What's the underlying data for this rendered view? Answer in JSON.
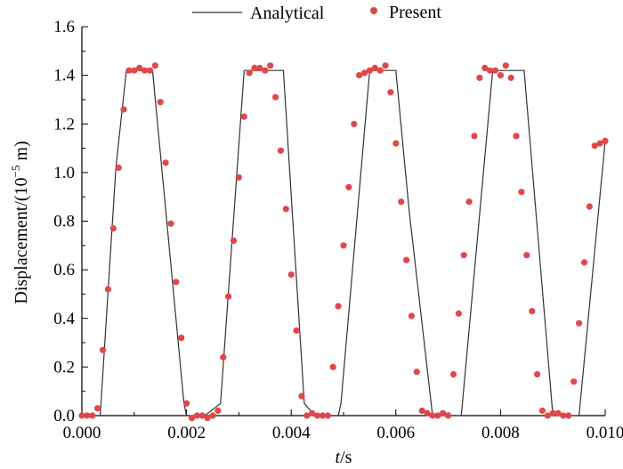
{
  "chart_data": {
    "type": "line",
    "title": "",
    "xlabel": {
      "italic": "t",
      "rest": "/s"
    },
    "ylabel": {
      "prefix": "Displacement/(10",
      "exp": "−5",
      "suffix": " m)"
    },
    "xlim": [
      0,
      0.01
    ],
    "ylim": [
      0,
      1.6
    ],
    "x_ticks": [
      "0.000",
      "0.002",
      "0.004",
      "0.006",
      "0.008",
      "0.010"
    ],
    "x_tick_values": [
      0,
      0.002,
      0.004,
      0.006,
      0.008,
      0.01
    ],
    "y_ticks": [
      "0.0",
      "0.2",
      "0.4",
      "0.6",
      "0.8",
      "1.0",
      "1.2",
      "1.4",
      "1.6"
    ],
    "y_tick_values": [
      0,
      0.2,
      0.4,
      0.6,
      0.8,
      1.0,
      1.2,
      1.4,
      1.6
    ],
    "legend_position": "top",
    "series": [
      {
        "name": "Analytical",
        "style": "line",
        "color": "#333333",
        "x": [
          0,
          0.00035,
          0.00065,
          0.00085,
          0.0013,
          0.00135,
          0.00195,
          0.002,
          0.00235,
          0.00265,
          0.0031,
          0.00315,
          0.00375,
          0.00385,
          0.00425,
          0.00445,
          0.0049,
          0.00495,
          0.0055,
          0.0056,
          0.006,
          0.00625,
          0.0067,
          0.00725,
          0.00785,
          0.00795,
          0.0084,
          0.00845,
          0.009,
          0.0095,
          0.01
        ],
        "y": [
          0,
          0,
          1.02,
          1.42,
          1.42,
          1.42,
          0.05,
          0,
          0,
          0.05,
          1.42,
          1.42,
          1.42,
          1.42,
          0.05,
          0,
          0,
          0.05,
          1.42,
          1.42,
          1.42,
          0.85,
          0,
          0,
          1.42,
          1.42,
          1.42,
          1.42,
          0,
          0,
          1.13
        ]
      },
      {
        "name": "Present",
        "style": "scatter",
        "color": "#e04848",
        "x": [
          0,
          0.0001,
          0.0002,
          0.0003,
          0.0004,
          0.0005,
          0.0006,
          0.0007,
          0.0008,
          0.0009,
          0.001,
          0.0011,
          0.0012,
          0.0013,
          0.0014,
          0.0015,
          0.0016,
          0.0017,
          0.0018,
          0.0019,
          0.002,
          0.0021,
          0.0022,
          0.0023,
          0.0024,
          0.0025,
          0.0026,
          0.0027,
          0.0028,
          0.0029,
          0.003,
          0.0031,
          0.0032,
          0.0033,
          0.0034,
          0.0035,
          0.0036,
          0.0037,
          0.0038,
          0.0039,
          0.004,
          0.0041,
          0.0042,
          0.0043,
          0.0044,
          0.0045,
          0.0046,
          0.0047,
          0.0048,
          0.0049,
          0.005,
          0.0051,
          0.0052,
          0.0053,
          0.0054,
          0.0055,
          0.0056,
          0.0057,
          0.0058,
          0.0059,
          0.006,
          0.0061,
          0.0062,
          0.0063,
          0.0064,
          0.0065,
          0.0066,
          0.0067,
          0.0068,
          0.0069,
          0.007,
          0.0071,
          0.0072,
          0.0073,
          0.0074,
          0.0075,
          0.0076,
          0.0077,
          0.0078,
          0.0079,
          0.008,
          0.0081,
          0.0082,
          0.0083,
          0.0084,
          0.0085,
          0.0086,
          0.0087,
          0.0088,
          0.0089,
          0.009,
          0.0091,
          0.0092,
          0.0093,
          0.0094,
          0.0095,
          0.0096,
          0.0097,
          0.0098,
          0.0099,
          0.01
        ],
        "y": [
          0.0,
          0.0,
          0.0,
          0.03,
          0.27,
          0.52,
          0.77,
          1.02,
          1.26,
          1.42,
          1.42,
          1.43,
          1.42,
          1.42,
          1.44,
          1.29,
          1.04,
          0.79,
          0.55,
          0.32,
          0.05,
          -0.01,
          0.0,
          0.0,
          -0.01,
          0.0,
          0.02,
          0.24,
          0.49,
          0.72,
          0.98,
          1.23,
          1.41,
          1.43,
          1.43,
          1.42,
          1.44,
          1.31,
          1.09,
          0.85,
          0.58,
          0.35,
          0.08,
          0.0,
          0.01,
          0.0,
          0.0,
          0.0,
          0.2,
          0.45,
          0.7,
          0.94,
          1.2,
          1.4,
          1.41,
          1.42,
          1.43,
          1.42,
          1.44,
          1.33,
          1.12,
          0.88,
          0.64,
          0.41,
          0.18,
          0.02,
          0.01,
          0.0,
          0.0,
          0.01,
          0.0,
          0.17,
          0.42,
          0.66,
          0.88,
          1.15,
          1.39,
          1.43,
          1.42,
          1.42,
          1.4,
          1.44,
          1.39,
          1.15,
          0.92,
          0.66,
          0.43,
          0.17,
          0.02,
          0.0,
          0.01,
          0.01,
          0.0,
          0.0,
          0.14,
          0.38,
          0.63,
          0.86,
          1.11,
          1.12,
          1.13
        ]
      }
    ]
  }
}
